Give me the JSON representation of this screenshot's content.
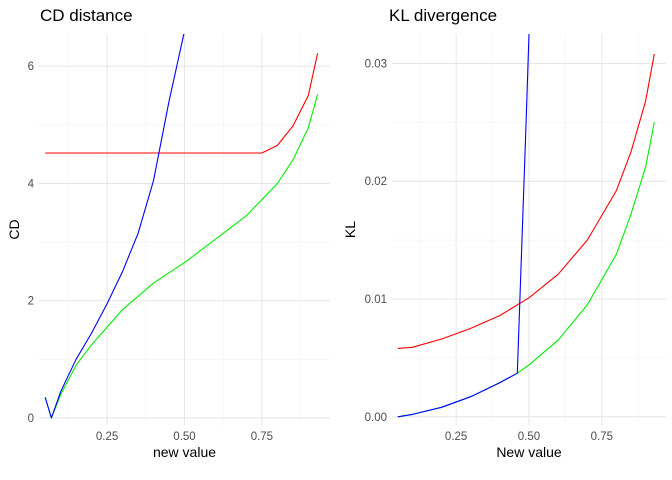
{
  "chart_data": [
    {
      "type": "line",
      "title": "CD distance",
      "xlabel": "new value",
      "ylabel": "CD",
      "xlim": [
        0.03,
        0.97
      ],
      "ylim": [
        -0.12,
        6.55
      ],
      "x_ticks": [
        0.25,
        0.5,
        0.75
      ],
      "x_tick_labels": [
        "0.25",
        "0.50",
        "0.75"
      ],
      "y_ticks": [
        0,
        2,
        4,
        6
      ],
      "y_tick_labels": [
        "0",
        "2",
        "4",
        "6"
      ],
      "grid": true,
      "legend": "none",
      "series": [
        {
          "color": "#ff0000",
          "x": [
            0.05,
            0.2,
            0.4,
            0.6,
            0.75,
            0.8,
            0.85,
            0.9,
            0.93
          ],
          "y": [
            4.52,
            4.52,
            4.52,
            4.52,
            4.52,
            4.65,
            4.98,
            5.5,
            6.22
          ]
        },
        {
          "color": "#00ee00",
          "x": [
            0.05,
            0.07,
            0.1,
            0.15,
            0.2,
            0.3,
            0.4,
            0.5,
            0.6,
            0.7,
            0.8,
            0.85,
            0.9,
            0.93
          ],
          "y": [
            0.35,
            0.0,
            0.4,
            0.9,
            1.25,
            1.85,
            2.3,
            2.65,
            3.05,
            3.45,
            4.0,
            4.4,
            4.95,
            5.52
          ]
        },
        {
          "color": "#0000ff",
          "x": [
            0.05,
            0.07,
            0.1,
            0.15,
            0.2,
            0.25,
            0.3,
            0.35,
            0.4,
            0.45,
            0.5
          ],
          "y": [
            0.35,
            0.0,
            0.45,
            1.0,
            1.45,
            1.95,
            2.5,
            3.15,
            4.05,
            5.4,
            6.6
          ]
        }
      ]
    },
    {
      "type": "line",
      "title": "KL divergence",
      "xlabel": "New value",
      "ylabel": "KL",
      "xlim": [
        0.03,
        0.97
      ],
      "ylim": [
        -0.0007,
        0.0325
      ],
      "x_ticks": [
        0.25,
        0.5,
        0.75
      ],
      "x_tick_labels": [
        "0.25",
        "0.50",
        "0.75"
      ],
      "y_ticks": [
        0.0,
        0.01,
        0.02,
        0.03
      ],
      "y_tick_labels": [
        "0.00",
        "0.01",
        "0.02",
        "0.03"
      ],
      "grid": true,
      "legend": "none",
      "series": [
        {
          "color": "#ff0000",
          "x": [
            0.05,
            0.1,
            0.2,
            0.3,
            0.4,
            0.5,
            0.6,
            0.7,
            0.8,
            0.85,
            0.9,
            0.93
          ],
          "y": [
            0.0058,
            0.0059,
            0.0066,
            0.0075,
            0.0086,
            0.0101,
            0.0121,
            0.015,
            0.0192,
            0.0225,
            0.0268,
            0.0308
          ]
        },
        {
          "color": "#00ee00",
          "x": [
            0.05,
            0.1,
            0.2,
            0.3,
            0.4,
            0.46,
            0.5,
            0.6,
            0.7,
            0.8,
            0.85,
            0.9,
            0.93
          ],
          "y": [
            0.0,
            0.0002,
            0.0008,
            0.0017,
            0.0029,
            0.0037,
            0.0044,
            0.0065,
            0.0095,
            0.0138,
            0.0172,
            0.0212,
            0.025
          ]
        },
        {
          "color": "#0000ff",
          "x": [
            0.05,
            0.1,
            0.2,
            0.3,
            0.4,
            0.46,
            0.49,
            0.5
          ],
          "y": [
            0.0,
            0.0002,
            0.0008,
            0.0017,
            0.0029,
            0.0037,
            0.025,
            0.0325
          ]
        }
      ]
    }
  ]
}
